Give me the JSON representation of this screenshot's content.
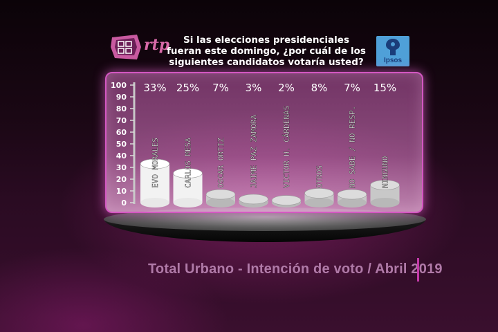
{
  "header": {
    "question_lines": [
      "Si las elecciones presidenciales",
      "fueran este domingo, ¿por cuál de los",
      "siguientes candidatos votaría usted?"
    ],
    "left_logo_text": "rtp",
    "right_logo_text": "Ipsos"
  },
  "chart_data": {
    "type": "bar",
    "categories": [
      "EVO MORALES",
      "CARLOS MESA",
      "OSCAR ORTIZ",
      "JAIME PAZ ZAMORA",
      "VICTOR H. CÁRDENAS",
      "OTROS",
      "NO SABE / NO RESP.",
      "NINGUNO"
    ],
    "values": [
      33,
      25,
      7,
      3,
      2,
      8,
      7,
      15
    ],
    "value_labels": [
      "33%",
      "25%",
      "7%",
      "3%",
      "2%",
      "8%",
      "7%",
      "15%"
    ],
    "yticks": [
      "100",
      "90",
      "80",
      "70",
      "60",
      "50",
      "40",
      "30",
      "20",
      "10",
      "0"
    ],
    "ylim": [
      0,
      100
    ]
  },
  "footer": {
    "text": "Total Urbano - Intención de voto / Abril 2019"
  }
}
